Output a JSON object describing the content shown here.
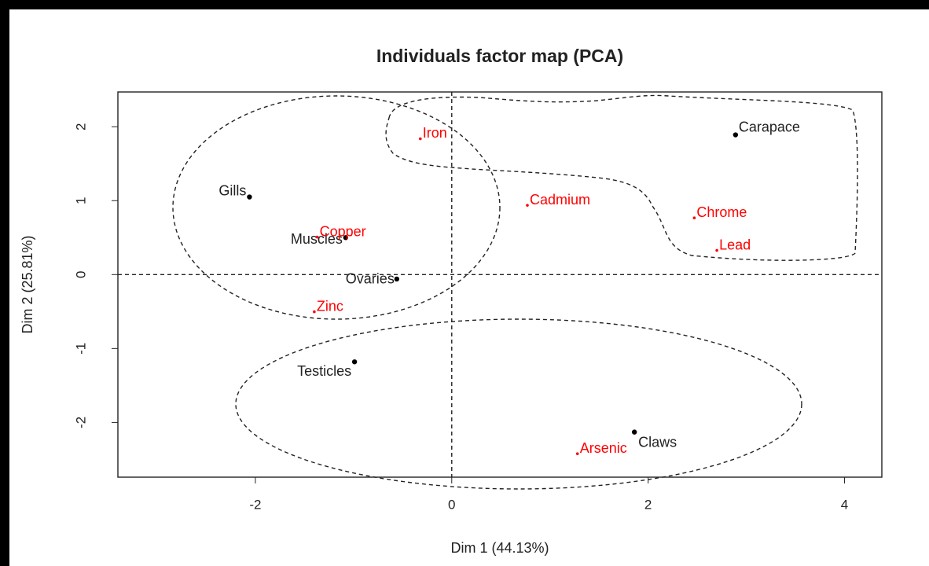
{
  "chart_data": {
    "type": "scatter",
    "title": "Individuals factor map (PCA)",
    "x_label": "Dim 1 (44.13%)",
    "y_label": "Dim 2 (25.81%)",
    "xlim": [
      -3.4,
      4.38
    ],
    "ylim": [
      -2.74,
      2.47
    ],
    "xticks": [
      -2,
      0,
      2,
      4
    ],
    "yticks": [
      -2,
      -1,
      0,
      1,
      2
    ],
    "points": {
      "color": "#000000",
      "labels": [
        "Carapace",
        "Gills",
        "Muscles",
        "Ovaries",
        "Testicles",
        "Claws"
      ],
      "x": [
        2.89,
        -2.06,
        -1.08,
        -0.56,
        -0.99,
        1.86
      ],
      "y": [
        1.89,
        1.05,
        0.5,
        -0.06,
        -1.18,
        -2.13
      ]
    },
    "variables": {
      "color": "#ff0000",
      "labels": [
        "Iron",
        "Cadmium",
        "Chrome",
        "Lead",
        "Copper",
        "Zinc",
        "Arsenic"
      ],
      "x": [
        -0.32,
        0.77,
        2.47,
        2.7,
        -1.37,
        -1.4,
        1.28
      ],
      "y": [
        1.88,
        0.98,
        0.81,
        0.37,
        0.55,
        -0.46,
        -2.38
      ]
    }
  }
}
